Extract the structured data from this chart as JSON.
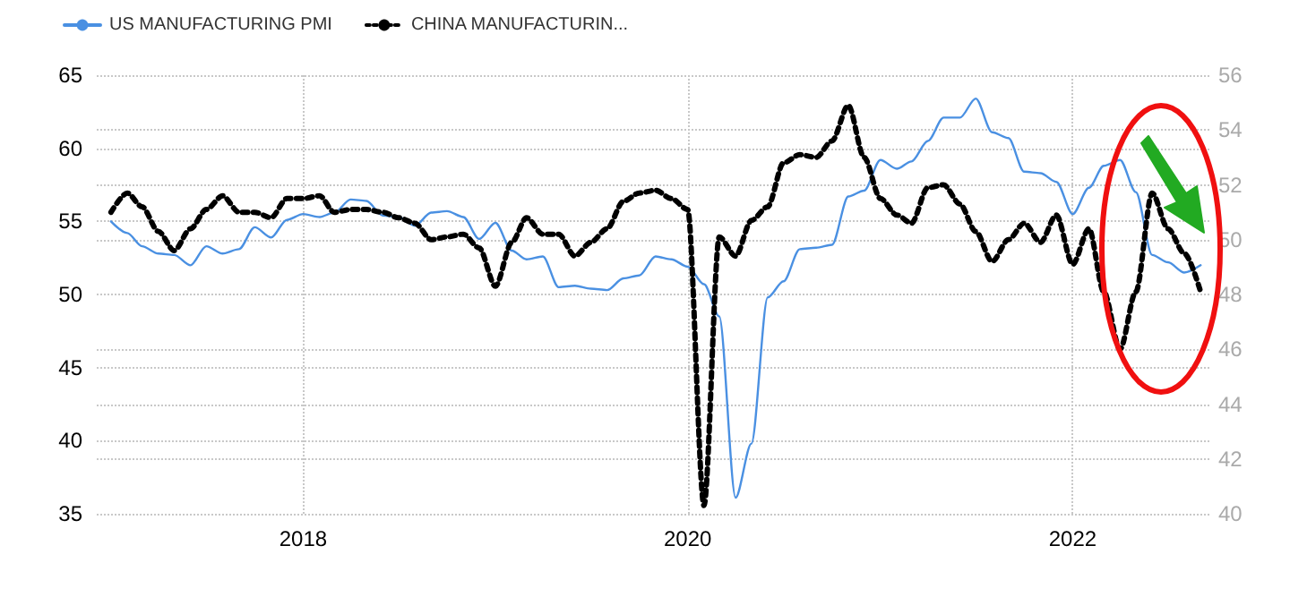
{
  "chart_data": {
    "type": "line",
    "x": [
      "2017-01",
      "2017-02",
      "2017-03",
      "2017-04",
      "2017-05",
      "2017-06",
      "2017-07",
      "2017-08",
      "2017-09",
      "2017-10",
      "2017-11",
      "2017-12",
      "2018-01",
      "2018-02",
      "2018-03",
      "2018-04",
      "2018-05",
      "2018-06",
      "2018-07",
      "2018-08",
      "2018-09",
      "2018-10",
      "2018-11",
      "2018-12",
      "2019-01",
      "2019-02",
      "2019-03",
      "2019-04",
      "2019-05",
      "2019-06",
      "2019-07",
      "2019-08",
      "2019-09",
      "2019-10",
      "2019-11",
      "2019-12",
      "2020-01",
      "2020-02",
      "2020-03",
      "2020-04",
      "2020-05",
      "2020-06",
      "2020-07",
      "2020-08",
      "2020-09",
      "2020-10",
      "2020-11",
      "2020-12",
      "2021-01",
      "2021-02",
      "2021-03",
      "2021-04",
      "2021-05",
      "2021-06",
      "2021-07",
      "2021-08",
      "2021-09",
      "2021-10",
      "2021-11",
      "2021-12",
      "2022-01",
      "2022-02",
      "2022-03",
      "2022-04",
      "2022-05",
      "2022-06",
      "2022-07",
      "2022-08",
      "2022-09"
    ],
    "series": [
      {
        "name": "US MANUFACTURING PMI",
        "color": "#4a90e2",
        "line_style": "solid",
        "values": [
          55.0,
          54.2,
          53.3,
          52.8,
          52.7,
          52.0,
          53.3,
          52.8,
          53.1,
          54.6,
          53.9,
          55.1,
          55.5,
          55.3,
          55.6,
          56.5,
          56.4,
          55.4,
          55.3,
          54.7,
          55.6,
          55.7,
          55.3,
          53.8,
          54.9,
          53.0,
          52.4,
          52.6,
          50.5,
          50.6,
          50.4,
          50.3,
          51.1,
          51.3,
          52.6,
          52.4,
          51.9,
          50.7,
          48.5,
          36.1,
          39.8,
          49.8,
          50.9,
          53.1,
          53.2,
          53.4,
          56.7,
          57.1,
          59.2,
          58.6,
          59.1,
          60.5,
          62.1,
          62.1,
          63.4,
          61.1,
          60.7,
          58.4,
          58.3,
          57.7,
          55.5,
          57.3,
          58.8,
          59.2,
          57.0,
          52.7,
          52.2,
          51.5,
          52.0
        ]
      },
      {
        "name": "CHINA MANUFACTURIN...",
        "color": "#000000",
        "line_style": "dotted",
        "axis": "y2",
        "values": [
          51.0,
          51.7,
          51.2,
          50.3,
          49.6,
          50.4,
          51.1,
          51.6,
          51.0,
          51.0,
          50.8,
          51.5,
          51.5,
          51.6,
          51.0,
          51.1,
          51.1,
          51.0,
          50.8,
          50.6,
          50.0,
          50.1,
          50.2,
          49.7,
          48.3,
          49.9,
          50.8,
          50.2,
          50.2,
          49.4,
          49.9,
          50.4,
          51.4,
          51.7,
          51.8,
          51.5,
          51.1,
          40.3,
          50.1,
          49.4,
          50.7,
          51.2,
          52.8,
          53.1,
          53.0,
          53.6,
          54.9,
          53.0,
          51.5,
          50.9,
          50.6,
          51.9,
          52.0,
          51.3,
          50.3,
          49.2,
          50.0,
          50.6,
          49.9,
          50.9,
          49.1,
          50.4,
          48.1,
          46.0,
          48.1,
          51.7,
          50.4,
          49.5,
          48.1
        ]
      }
    ],
    "xlim": [
      "2016-12-05",
      "2022-09-21"
    ],
    "xticks": [
      {
        "value": "2018",
        "label": "2018"
      },
      {
        "value": "2020",
        "label": "2020"
      },
      {
        "value": "2022",
        "label": "2022"
      }
    ],
    "ylim": [
      35,
      65
    ],
    "yticks": [
      35,
      40,
      45,
      50,
      55,
      60,
      65
    ],
    "y2lim": [
      40,
      56
    ],
    "y2ticks": [
      40,
      42,
      44,
      46,
      48,
      50,
      52,
      54,
      56
    ],
    "grid": true,
    "legend": "top left",
    "marker": "none"
  }
}
